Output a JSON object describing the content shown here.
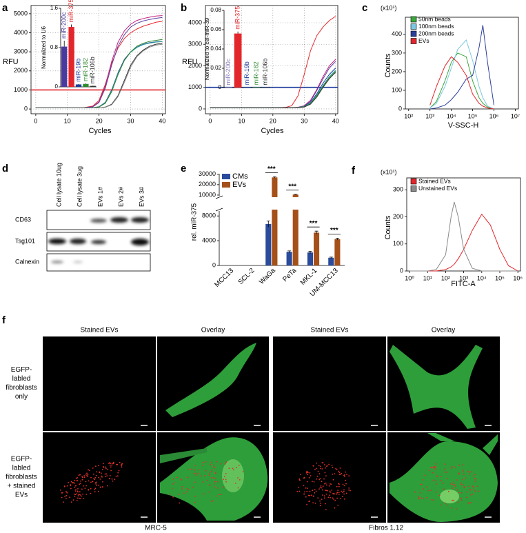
{
  "chart_data": [
    {
      "type": "line",
      "panel_label": "a",
      "xlabel": "Cycles",
      "ylabel": "RFU",
      "x": [
        0,
        5,
        10,
        15,
        18,
        20,
        22,
        24,
        26,
        28,
        30,
        32,
        34,
        36,
        38,
        40
      ],
      "xlim": [
        -1.5,
        41
      ],
      "xticks": [
        0,
        10,
        20,
        30,
        40
      ],
      "ylim": [
        -250,
        5430
      ],
      "yticks": [
        0,
        1000,
        2000,
        3000,
        4000,
        5000
      ],
      "grid": true,
      "threshold": 1000,
      "threshold_color": "#e3262b",
      "series": [
        {
          "color": "#e8262b",
          "values": [
            60,
            60,
            60,
            70,
            150,
            450,
            1300,
            2400,
            3200,
            3700,
            4000,
            4200,
            4350,
            4450,
            4550,
            4600
          ]
        },
        {
          "color": "#c02080",
          "values": [
            60,
            60,
            60,
            70,
            120,
            380,
            1200,
            2500,
            3500,
            4100,
            4450,
            4650,
            4750,
            4820,
            4880,
            4900
          ]
        },
        {
          "color": "#5b3fa0",
          "values": [
            60,
            60,
            60,
            65,
            110,
            340,
            1100,
            2300,
            3300,
            3900,
            4300,
            4500,
            4620,
            4700,
            4760,
            4800
          ]
        },
        {
          "color": "#2040a0",
          "values": [
            60,
            60,
            60,
            60,
            70,
            120,
            350,
            1000,
            1900,
            2600,
            3000,
            3250,
            3400,
            3480,
            3520,
            3550
          ]
        },
        {
          "color": "#30a0a0",
          "values": [
            60,
            60,
            60,
            60,
            70,
            110,
            320,
            950,
            1850,
            2550,
            2980,
            3230,
            3380,
            3460,
            3510,
            3540
          ]
        },
        {
          "color": "#2e8b2e",
          "values": [
            60,
            60,
            60,
            60,
            65,
            100,
            300,
            900,
            1800,
            2550,
            3000,
            3300,
            3450,
            3550,
            3600,
            3650
          ]
        },
        {
          "color": "#333333",
          "values": [
            60,
            60,
            60,
            60,
            60,
            70,
            100,
            250,
            700,
            1500,
            2300,
            2800,
            3100,
            3300,
            3400,
            3450
          ]
        },
        {
          "color": "#888888",
          "values": [
            60,
            60,
            60,
            60,
            60,
            70,
            90,
            220,
            650,
            1400,
            2200,
            2750,
            3050,
            3250,
            3350,
            3400
          ]
        }
      ],
      "inset": {
        "type": "bar",
        "ylabel": "Normalized to U6",
        "categories": [
          "miR-200c",
          "miR-375",
          "miR-19b",
          "miR-182",
          "miR-106b"
        ],
        "colors": [
          "#4a3aa0",
          "#e3262b",
          "#1f3d9a",
          "#2e8b2e",
          "#333333"
        ],
        "values": [
          0.82,
          1.22,
          0.05,
          0.06,
          0.02
        ],
        "errors": [
          0.12,
          0.05,
          0.01,
          0.01,
          0.005
        ],
        "ylim": [
          0,
          1.6
        ],
        "yticks": [
          0,
          0.8,
          1.6
        ]
      }
    },
    {
      "type": "line",
      "panel_label": "b",
      "xlabel": "Cycles",
      "ylabel": "RFU",
      "x": [
        0,
        5,
        10,
        15,
        18,
        20,
        22,
        24,
        26,
        28,
        30,
        32,
        34,
        36,
        38,
        40
      ],
      "xlim": [
        -1.5,
        40.7
      ],
      "xticks": [
        0,
        10,
        20,
        30,
        40
      ],
      "ylim": [
        -225,
        4800
      ],
      "yticks": [
        0,
        1000,
        2000,
        3000,
        4000
      ],
      "grid": true,
      "threshold": 1000,
      "threshold_color": "#1a3a9a",
      "series": [
        {
          "color": "#e8262b",
          "values": [
            50,
            50,
            50,
            50,
            50,
            55,
            60,
            70,
            150,
            600,
            1600,
            2700,
            3400,
            3800,
            4100,
            4300
          ]
        },
        {
          "color": "#c02080",
          "values": [
            50,
            50,
            50,
            50,
            50,
            50,
            50,
            50,
            60,
            80,
            150,
            400,
            900,
            1500,
            2000,
            2300
          ]
        },
        {
          "color": "#5b3fa0",
          "values": [
            50,
            50,
            50,
            50,
            50,
            50,
            50,
            50,
            55,
            70,
            130,
            350,
            850,
            1400,
            1900,
            2200
          ]
        },
        {
          "color": "#2040a0",
          "values": [
            50,
            50,
            50,
            50,
            50,
            50,
            50,
            50,
            55,
            70,
            120,
            300,
            700,
            1200,
            1600,
            1900
          ]
        },
        {
          "color": "#30a0a0",
          "values": [
            50,
            50,
            50,
            50,
            50,
            50,
            50,
            50,
            55,
            65,
            110,
            280,
            650,
            1100,
            1500,
            1800
          ]
        },
        {
          "color": "#2e8b2e",
          "values": [
            50,
            50,
            50,
            50,
            50,
            50,
            50,
            50,
            55,
            65,
            100,
            250,
            600,
            1050,
            1450,
            1750
          ]
        },
        {
          "color": "#333333",
          "values": [
            50,
            50,
            50,
            50,
            50,
            50,
            50,
            50,
            55,
            60,
            90,
            220,
            550,
            1000,
            1400,
            1700
          ]
        }
      ],
      "inset": {
        "type": "bar",
        "ylabel": "Normalized to cel-miR-39",
        "categories": [
          "miR-200c",
          "miR-375",
          "miR-19b",
          "miR-182",
          "miR-106b"
        ],
        "colors": [
          "#8a7ac0",
          "#e3262b",
          "#1f3d9a",
          "#2e8b2e",
          "#333333"
        ],
        "values": [
          0.0005,
          0.056,
          0.0005,
          0.0005,
          0.0003
        ],
        "errors": [
          0,
          0.002,
          0,
          0,
          0
        ],
        "ylim": [
          0,
          0.08
        ],
        "yticks": [
          0,
          0.02,
          0.04,
          0.06,
          0.08
        ]
      }
    },
    {
      "type": "line",
      "panel_label": "c",
      "xlabel": "V-SSC-H",
      "ylabel": "Counts",
      "y_unit": "(x10¹)",
      "xscale": "log",
      "legend": "top-left",
      "x": [
        1000,
        2000,
        5000,
        10000,
        20000,
        50000,
        100000,
        200000,
        300000,
        500000,
        1000000
      ],
      "xlim": [
        70,
        14000000
      ],
      "xticks": [
        {
          "value": 100,
          "label": "10²"
        },
        {
          "value": 1000,
          "label": "10³"
        },
        {
          "value": 10000,
          "label": "10⁴"
        },
        {
          "value": 100000,
          "label": "10⁵"
        },
        {
          "value": 1000000,
          "label": "10⁶"
        },
        {
          "value": 10000000,
          "label": "10⁷"
        }
      ],
      "ylim": [
        0,
        492
      ],
      "yticks": [
        0,
        100,
        200,
        300,
        400
      ],
      "series": [
        {
          "name": "50nm beads",
          "color": "#3aa83a",
          "values": [
            5,
            40,
            150,
            250,
            300,
            280,
            150,
            60,
            30,
            10,
            0
          ]
        },
        {
          "name": "100nm beads",
          "color": "#7cc7e0",
          "values": [
            5,
            30,
            120,
            220,
            320,
            370,
            260,
            120,
            60,
            15,
            0
          ]
        },
        {
          "name": "200nm beads",
          "color": "#2a3e9a",
          "values": [
            0,
            5,
            20,
            50,
            90,
            160,
            180,
            330,
            450,
            250,
            20
          ]
        },
        {
          "name": "EVs",
          "color": "#e3262b",
          "values": [
            20,
            120,
            230,
            280,
            250,
            180,
            80,
            30,
            15,
            5,
            0
          ]
        }
      ]
    },
    {
      "type": "bar",
      "panel_label": "e",
      "ylabel": "rel. miR-375",
      "categories": [
        "MCC13",
        "SCL-2",
        "WaGa",
        "PeTa",
        "MKL-1",
        "UM-MCC13"
      ],
      "ylim": [
        0,
        30500
      ],
      "ybreak": [
        8800,
        9300
      ],
      "yticks": [
        0,
        4000,
        8000,
        10000,
        20000,
        30000
      ],
      "series": [
        {
          "name": "CMs",
          "color": "#2a4b9b",
          "values": [
            0,
            0,
            6700,
            2200,
            2100,
            1250
          ],
          "errors": [
            0,
            0,
            500,
            150,
            200,
            100
          ]
        },
        {
          "name": "EVs",
          "color": "#a65019",
          "values": [
            0,
            0,
            27000,
            10500,
            5300,
            4250
          ],
          "errors": [
            0,
            0,
            600,
            300,
            250,
            150
          ]
        }
      ],
      "annotations": [
        {
          "text": "***",
          "category": "WaGa"
        },
        {
          "text": "***",
          "category": "PeTa"
        },
        {
          "text": "***",
          "category": "MKL-1"
        },
        {
          "text": "***",
          "category": "UM-MCC13"
        }
      ]
    },
    {
      "type": "line",
      "panel_label": "f",
      "xlabel": "FITC-A",
      "ylabel": "Counts",
      "y_unit": "(x10¹)",
      "xscale": "log",
      "legend": "top-left",
      "x": [
        1,
        10,
        30,
        100,
        200,
        300,
        500,
        1000,
        3000,
        10000,
        30000,
        100000,
        300000,
        1000000
      ],
      "xlim": [
        0.7,
        1400000
      ],
      "xticks": [
        {
          "value": 1,
          "label": "10⁰"
        },
        {
          "value": 10,
          "label": "10¹"
        },
        {
          "value": 100,
          "label": "10²"
        },
        {
          "value": 1000,
          "label": "10³"
        },
        {
          "value": 10000,
          "label": "10⁴"
        },
        {
          "value": 100000,
          "label": "10⁵"
        },
        {
          "value": 1000000,
          "label": "10⁶"
        }
      ],
      "ylim": [
        0,
        344
      ],
      "yticks": [
        0,
        100,
        200,
        300
      ],
      "series": [
        {
          "name": "Stained EVs",
          "color": "#e3262b",
          "values": [
            0,
            0,
            0,
            5,
            15,
            25,
            45,
            80,
            150,
            210,
            170,
            80,
            20,
            0
          ]
        },
        {
          "name": "Unstained EVs",
          "color": "#8a8a8a",
          "values": [
            0,
            0,
            5,
            60,
            200,
            255,
            200,
            80,
            10,
            0,
            0,
            0,
            0,
            0
          ]
        }
      ]
    }
  ],
  "blot": {
    "panel_label": "d",
    "lanes": [
      "Cell lysate 10ug",
      "Cell lysate 3ug",
      "EVs 1#",
      "EVs 2#",
      "EVs 3#"
    ],
    "rows": [
      "CD63",
      "Tsg101",
      "Calnexin"
    ]
  },
  "microscopy": {
    "panel_label": "f",
    "column_headers": [
      "Stained EVs",
      "Overlay",
      "Stained EVs",
      "Overlay"
    ],
    "row_labels": [
      [
        "EGFP-",
        "labled",
        "fibroblasts",
        "only"
      ],
      [
        "EGFP-",
        "labled",
        "fibroblasts",
        "+ stained",
        "EVs"
      ]
    ],
    "cell_lines": [
      "MRC-5",
      "Fibros 1.12"
    ]
  }
}
